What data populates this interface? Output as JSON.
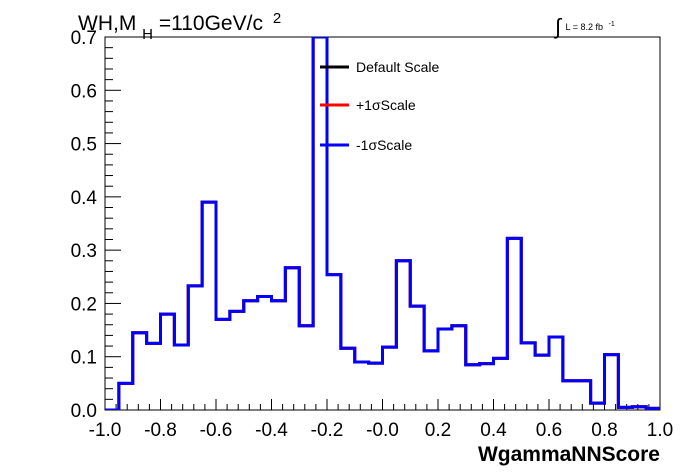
{
  "chart_data": {
    "type": "line",
    "title_parts": {
      "main": "WH,M",
      "sub": "H",
      "mid": "=110GeV/c",
      "sup": "2"
    },
    "lumi_parts": {
      "integral": "∫",
      "text": "L = 8.2 fb",
      "sup": "-1"
    },
    "xlabel": "WgammaNNScore",
    "ylabel": "",
    "xlim": [
      -1.0,
      1.0
    ],
    "ylim": [
      0.0,
      0.7
    ],
    "x_ticks": [
      "-1.0",
      "-0.8",
      "-0.6",
      "-0.4",
      "-0.2",
      "-0.0",
      "0.2",
      "0.4",
      "0.6",
      "0.8",
      "1.0"
    ],
    "y_ticks": [
      "0.0",
      "0.1",
      "0.2",
      "0.3",
      "0.4",
      "0.5",
      "0.6",
      "0.7"
    ],
    "bin_edges": [
      -1.0,
      -0.95,
      -0.9,
      -0.85,
      -0.8,
      -0.75,
      -0.7,
      -0.65,
      -0.6,
      -0.55,
      -0.5,
      -0.45,
      -0.4,
      -0.35,
      -0.3,
      -0.25,
      -0.2,
      -0.15,
      -0.1,
      -0.05,
      0.0,
      0.05,
      0.1,
      0.15,
      0.2,
      0.25,
      0.3,
      0.35,
      0.4,
      0.45,
      0.5,
      0.55,
      0.6,
      0.65,
      0.7,
      0.75,
      0.8,
      0.85,
      0.9,
      0.95,
      1.0
    ],
    "series": [
      {
        "name": "Default Scale",
        "color": "#000000",
        "values": [
          0.0,
          0.05,
          0.145,
          0.125,
          0.18,
          0.122,
          0.233,
          0.39,
          0.17,
          0.185,
          0.205,
          0.213,
          0.205,
          0.267,
          0.158,
          0.7,
          0.254,
          0.116,
          0.09,
          0.088,
          0.118,
          0.28,
          0.195,
          0.111,
          0.152,
          0.158,
          0.085,
          0.087,
          0.097,
          0.322,
          0.126,
          0.103,
          0.137,
          0.055,
          0.055,
          0.013,
          0.104,
          0.005,
          0.006,
          0.003
        ]
      },
      {
        "name": "+1σScale",
        "color": "#ff0000",
        "values": [
          0.0,
          0.05,
          0.145,
          0.125,
          0.18,
          0.122,
          0.233,
          0.39,
          0.17,
          0.185,
          0.205,
          0.213,
          0.205,
          0.267,
          0.158,
          0.7,
          0.254,
          0.116,
          0.09,
          0.088,
          0.118,
          0.28,
          0.195,
          0.111,
          0.152,
          0.158,
          0.085,
          0.087,
          0.097,
          0.322,
          0.126,
          0.103,
          0.137,
          0.055,
          0.055,
          0.013,
          0.104,
          0.005,
          0.006,
          0.003
        ]
      },
      {
        "name": "-1σScale",
        "color": "#0000ff",
        "values": [
          0.0,
          0.05,
          0.145,
          0.125,
          0.18,
          0.122,
          0.233,
          0.39,
          0.17,
          0.185,
          0.205,
          0.213,
          0.205,
          0.267,
          0.158,
          0.7,
          0.254,
          0.116,
          0.09,
          0.088,
          0.118,
          0.28,
          0.195,
          0.111,
          0.152,
          0.158,
          0.085,
          0.087,
          0.097,
          0.322,
          0.126,
          0.103,
          0.137,
          0.055,
          0.055,
          0.013,
          0.104,
          0.005,
          0.006,
          0.003
        ]
      }
    ],
    "legend_position": "top-center",
    "grid": false
  }
}
